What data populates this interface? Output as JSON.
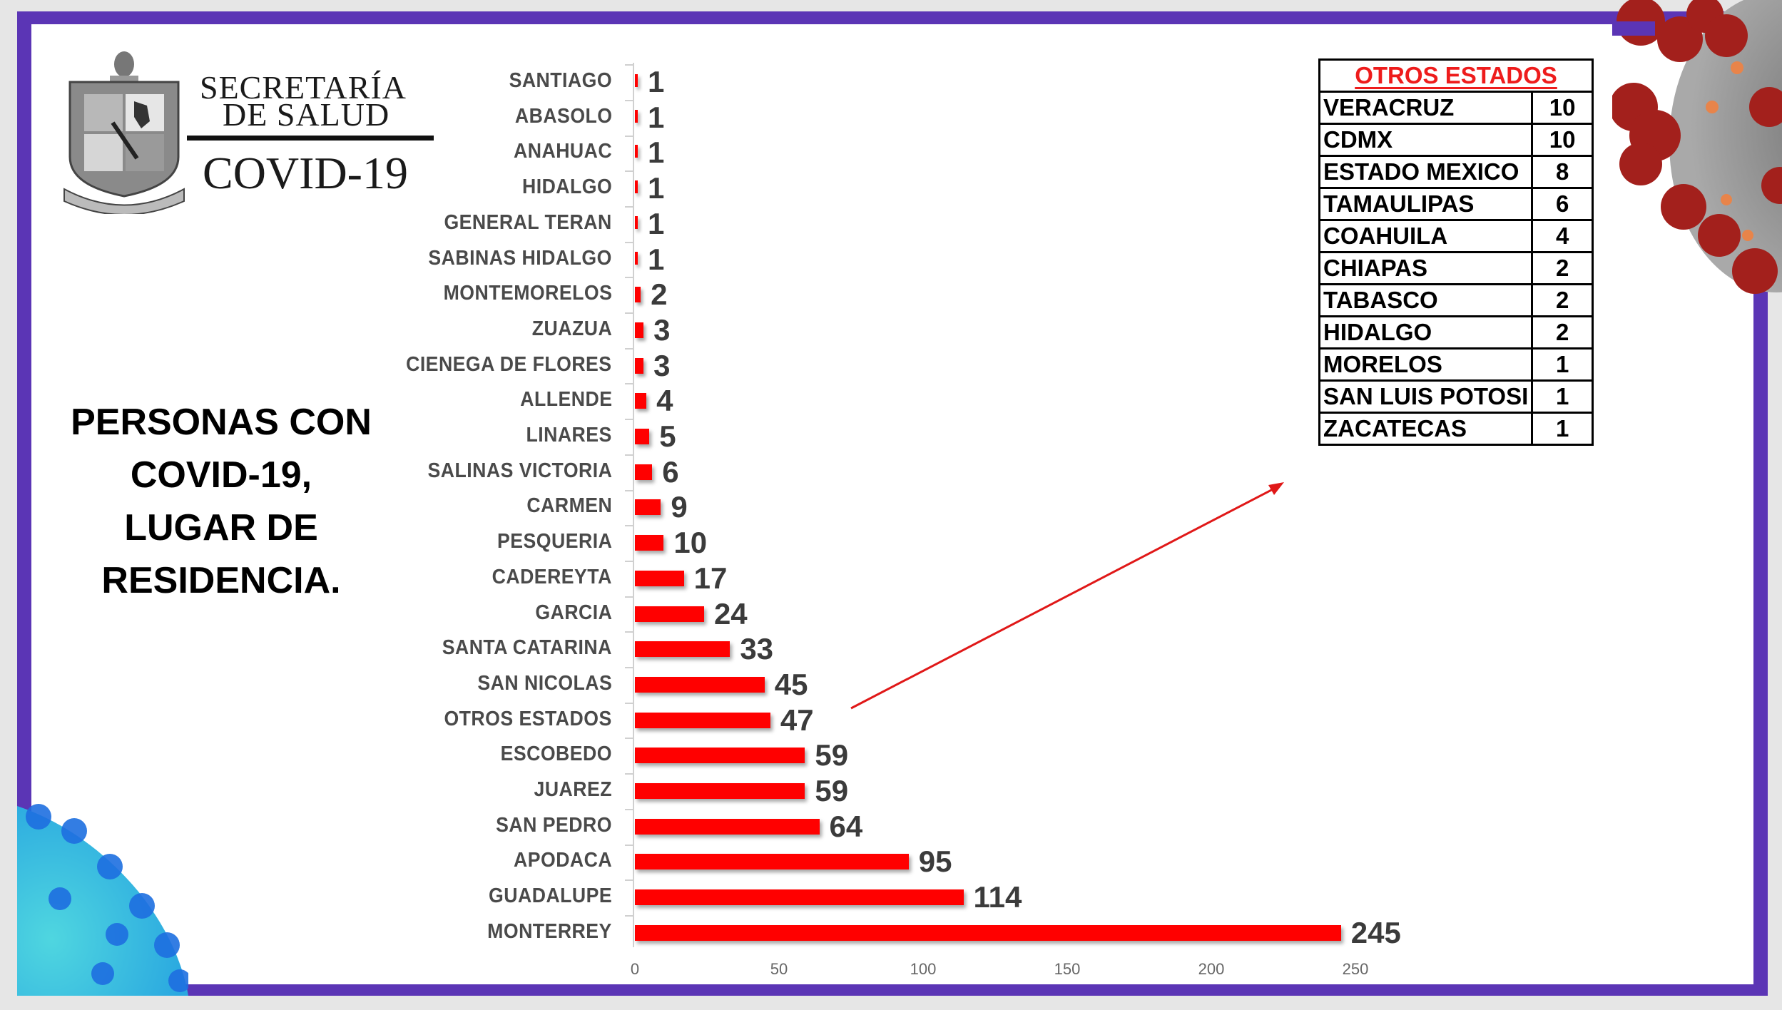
{
  "header": {
    "line1": "SECRETARÍA",
    "line2": "DE SALUD",
    "line3": "COVID-19"
  },
  "headline": {
    "lines": [
      "PERSONAS CON",
      "COVID-19,",
      "LUGAR DE",
      "RESIDENCIA."
    ]
  },
  "colors": {
    "frame": "#5b35b5",
    "bar": "#ff0000",
    "table_title": "#ee1c1c",
    "arrow": "#e01818"
  },
  "chart_data": {
    "type": "bar",
    "orientation": "horizontal",
    "title": "PERSONAS CON COVID-19, LUGAR DE RESIDENCIA.",
    "xlabel": "",
    "ylabel": "",
    "xlim": [
      0,
      250
    ],
    "x_ticks": [
      "0",
      "50",
      "100",
      "150",
      "200",
      "250"
    ],
    "grid": false,
    "legend": null,
    "categories": [
      "SANTIAGO",
      "ABASOLO",
      "ANAHUAC",
      "HIDALGO",
      "GENERAL TERAN",
      "SABINAS HIDALGO",
      "MONTEMORELOS",
      "ZUAZUA",
      "CIENEGA DE FLORES",
      "ALLENDE",
      "LINARES",
      "SALINAS VICTORIA",
      "CARMEN",
      "PESQUERIA",
      "CADEREYTA",
      "GARCIA",
      "SANTA CATARINA",
      "SAN NICOLAS",
      "OTROS ESTADOS",
      "ESCOBEDO",
      "JUAREZ",
      "SAN PEDRO",
      "APODACA",
      "GUADALUPE",
      "MONTERREY"
    ],
    "values": [
      1,
      1,
      1,
      1,
      1,
      1,
      2,
      3,
      3,
      4,
      5,
      6,
      9,
      10,
      17,
      24,
      33,
      45,
      47,
      59,
      59,
      64,
      95,
      114,
      245
    ]
  },
  "other_states": {
    "title": "OTROS ESTADOS",
    "rows": [
      {
        "state": "VERACRUZ",
        "count": "10"
      },
      {
        "state": "CDMX",
        "count": "10"
      },
      {
        "state": "ESTADO MEXICO",
        "count": "8"
      },
      {
        "state": "TAMAULIPAS",
        "count": "6"
      },
      {
        "state": "COAHUILA",
        "count": "4"
      },
      {
        "state": "CHIAPAS",
        "count": "2"
      },
      {
        "state": "TABASCO",
        "count": "2"
      },
      {
        "state": "HIDALGO",
        "count": "2"
      },
      {
        "state": "MORELOS",
        "count": "1"
      },
      {
        "state": "SAN LUIS POTOSI",
        "count": "1"
      },
      {
        "state": "ZACATECAS",
        "count": "1"
      }
    ]
  }
}
